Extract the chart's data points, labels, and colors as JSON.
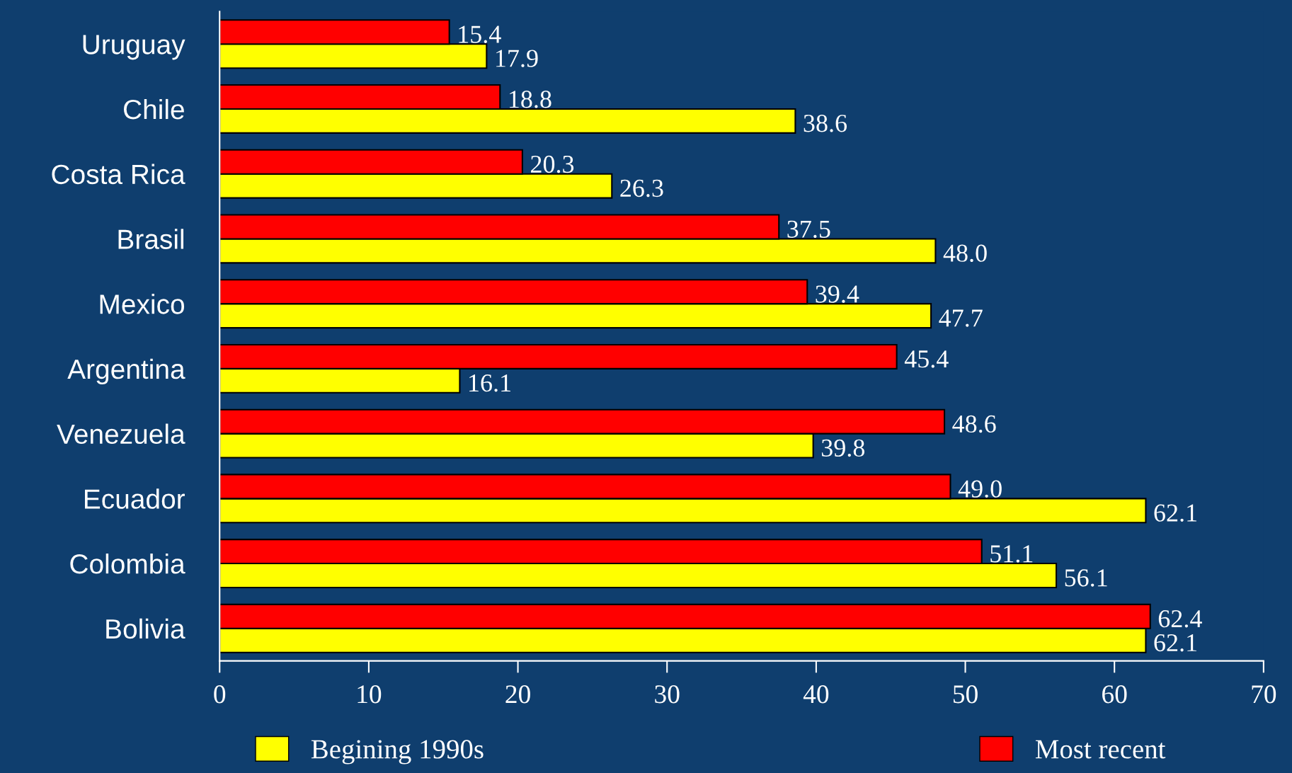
{
  "chart_data": {
    "type": "bar",
    "orientation": "horizontal",
    "categories": [
      "Uruguay",
      "Chile",
      "Costa Rica",
      "Brasil",
      "Mexico",
      "Argentina",
      "Venezuela",
      "Ecuador",
      "Colombia",
      "Bolivia"
    ],
    "series": [
      {
        "name": "Begining 1990s",
        "color": "#ffff00",
        "values": [
          17.9,
          38.6,
          26.3,
          48.0,
          47.7,
          16.1,
          39.8,
          62.1,
          56.1,
          62.1
        ],
        "value_labels": [
          "17.9",
          "38.6",
          "26.3",
          "48.0",
          "47.7",
          "16.1",
          "39.8",
          "62.1",
          "56.1",
          "62.1"
        ]
      },
      {
        "name": "Most recent",
        "color": "#ff0000",
        "values": [
          15.4,
          18.8,
          20.3,
          37.5,
          39.4,
          45.4,
          48.6,
          49.0,
          51.1,
          62.4
        ],
        "value_labels": [
          "15.4",
          "18.8",
          "20.3",
          "37.5",
          "39.4",
          "45.4",
          "48.6",
          "49.0",
          "51.1",
          "62.4"
        ]
      }
    ],
    "xlim": [
      0,
      70
    ],
    "xticks": [
      0,
      10,
      20,
      30,
      40,
      50,
      60,
      70
    ],
    "legend": "bottom",
    "grid": false
  }
}
